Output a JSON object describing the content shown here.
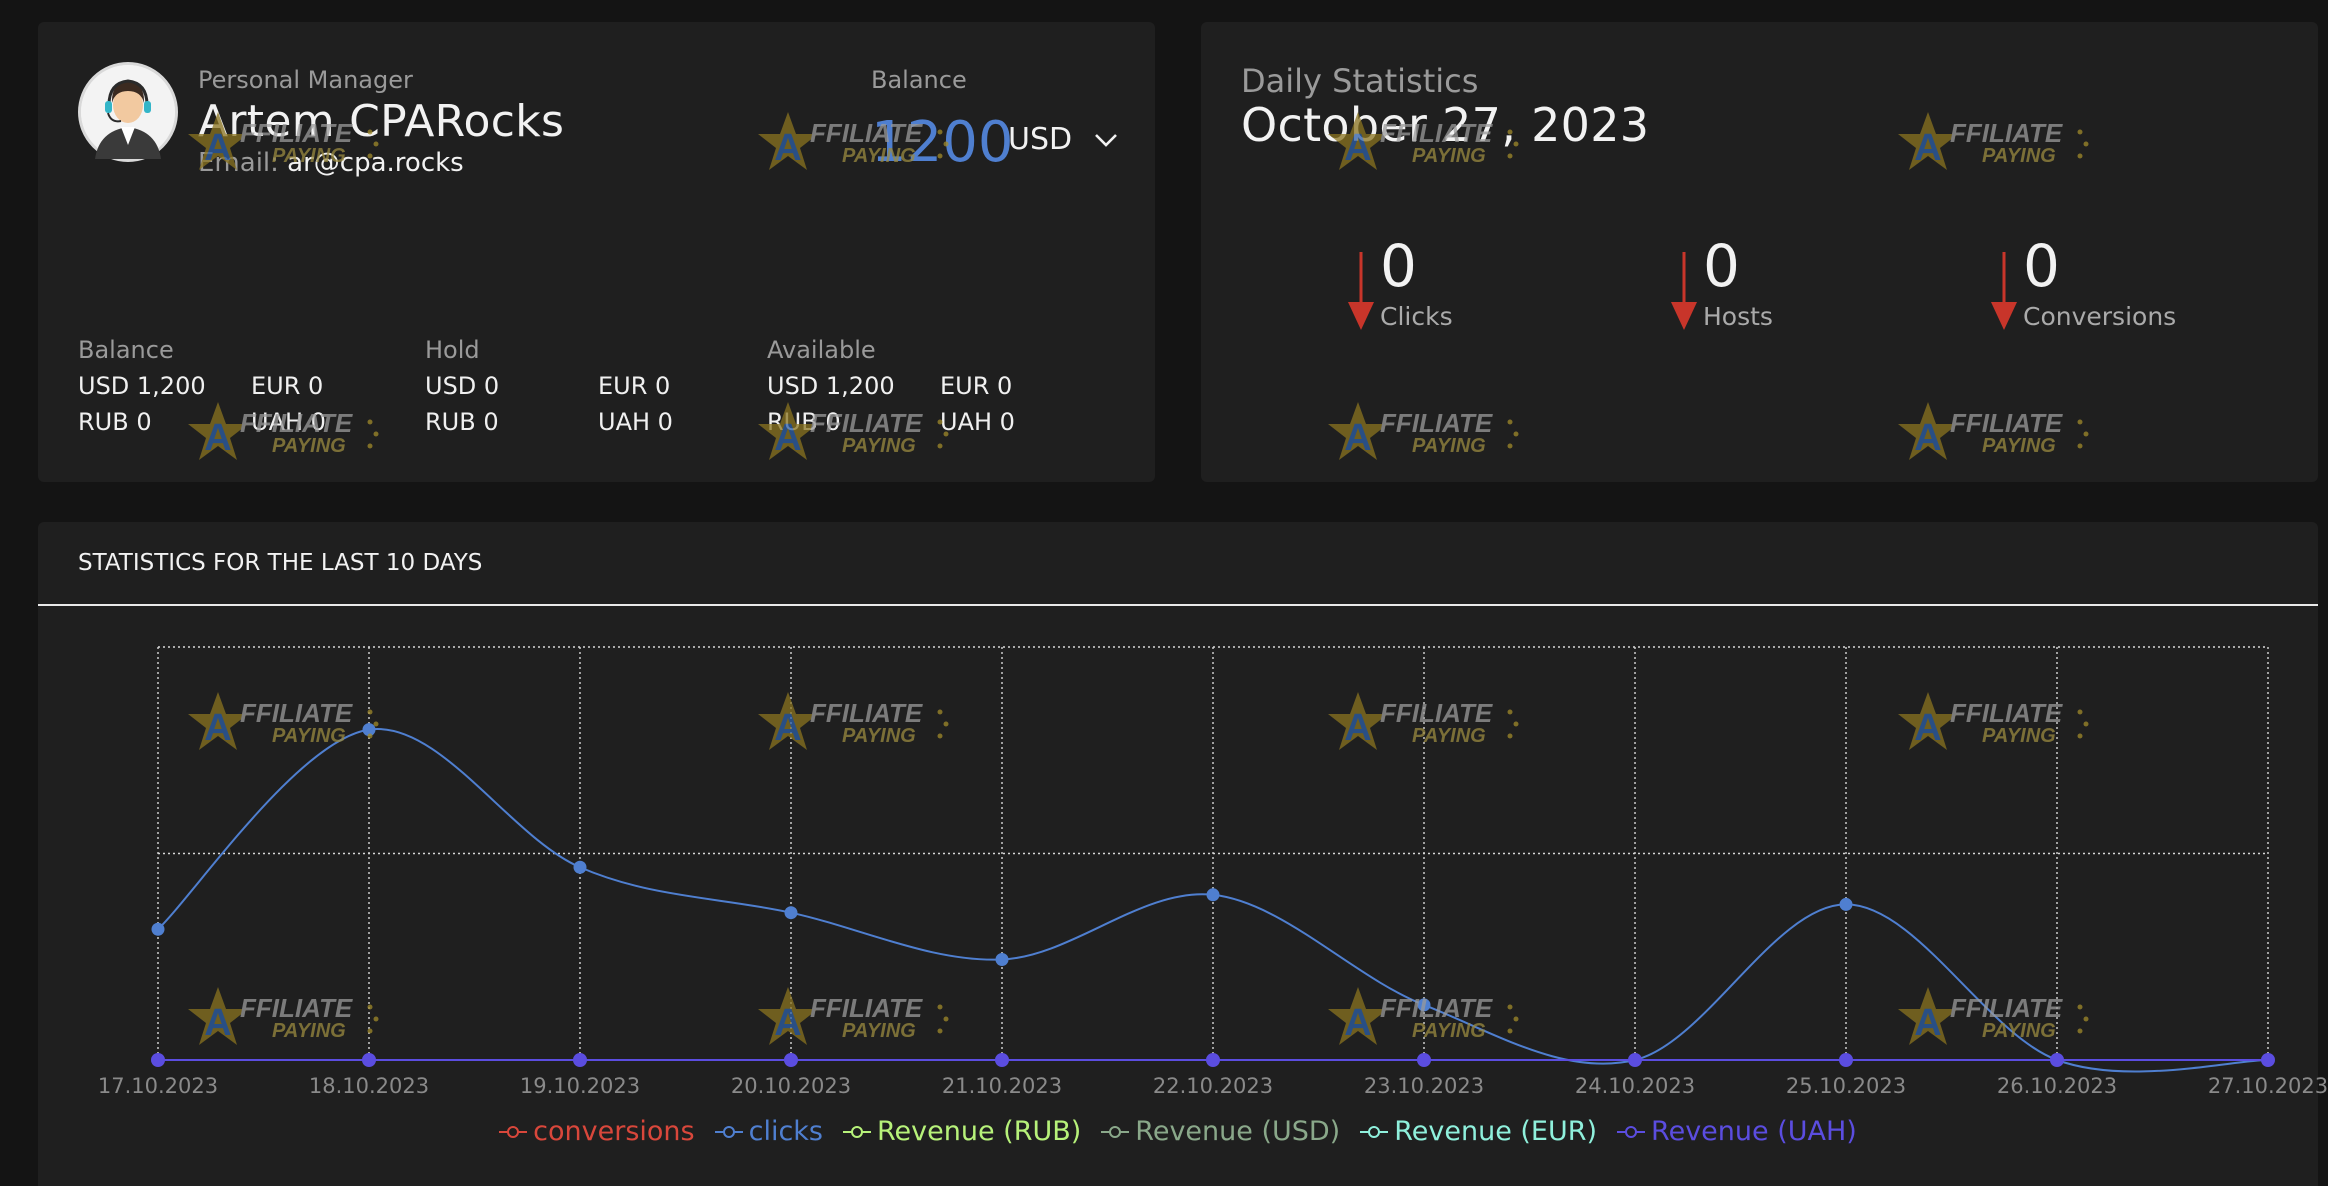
{
  "manager": {
    "label": "Personal Manager",
    "name": "Artem CPARocks",
    "email_label": "Email:",
    "email": "ar@cpa.rocks",
    "balance_label": "Balance",
    "balance_amount": "1200",
    "balance_currency": "USD",
    "groups": [
      {
        "title": "Balance",
        "rows": [
          [
            "USD 1,200",
            "EUR 0"
          ],
          [
            "RUB 0",
            "UAH 0"
          ]
        ]
      },
      {
        "title": "Hold",
        "rows": [
          [
            "USD 0",
            "EUR 0"
          ],
          [
            "RUB 0",
            "UAH 0"
          ]
        ]
      },
      {
        "title": "Available",
        "rows": [
          [
            "USD 1,200",
            "EUR 0"
          ],
          [
            "RUB 0",
            "UAH 0"
          ]
        ]
      }
    ]
  },
  "daily": {
    "label": "Daily Statistics",
    "date": "October 27, 2023",
    "metrics": [
      {
        "value": "0",
        "label": "Clicks"
      },
      {
        "value": "0",
        "label": "Hosts"
      },
      {
        "value": "0",
        "label": "Conversions"
      }
    ]
  },
  "stats": {
    "title": "STATISTICS FOR THE LAST 10 DAYS"
  },
  "colors": {
    "conversions": "#d9473b",
    "clicks": "#4f7fd0",
    "revenue_rub": "#b7f27a",
    "revenue_usd": "#8aa88a",
    "revenue_eur": "#8ff0dc",
    "revenue_uah": "#5b4de0",
    "arrow_down": "#c8352a"
  },
  "watermark_text": [
    "AFFILIATE",
    "PAYING"
  ],
  "chart_data": {
    "type": "line",
    "x": [
      "17.10.2023",
      "18.10.2023",
      "19.10.2023",
      "20.10.2023",
      "21.10.2023",
      "22.10.2023",
      "23.10.2023",
      "24.10.2023",
      "25.10.2023",
      "26.10.2023",
      "27.10.2023"
    ],
    "ylim": [
      0,
      3
    ],
    "grid": true,
    "legend": "bottom-center",
    "series": [
      {
        "name": "conversions",
        "values": [
          0,
          0,
          0,
          0,
          0,
          0,
          0,
          0,
          0,
          0,
          0
        ]
      },
      {
        "name": "clicks",
        "values": [
          0.95,
          2.4,
          1.4,
          1.07,
          0.73,
          1.2,
          0.4,
          0,
          1.13,
          0,
          0
        ]
      },
      {
        "name": "Revenue (RUB)",
        "values": [
          0,
          0,
          0,
          0,
          0,
          0,
          0,
          0,
          0,
          0,
          0
        ]
      },
      {
        "name": "Revenue (USD)",
        "values": [
          0,
          0,
          0,
          0,
          0,
          0,
          0,
          0,
          0,
          0,
          0
        ]
      },
      {
        "name": "Revenue (EUR)",
        "values": [
          0,
          0,
          0,
          0,
          0,
          0,
          0,
          0,
          0,
          0,
          0
        ]
      },
      {
        "name": "Revenue (UAH)",
        "values": [
          0,
          0,
          0,
          0,
          0,
          0,
          0,
          0,
          0,
          0,
          0
        ]
      }
    ]
  }
}
